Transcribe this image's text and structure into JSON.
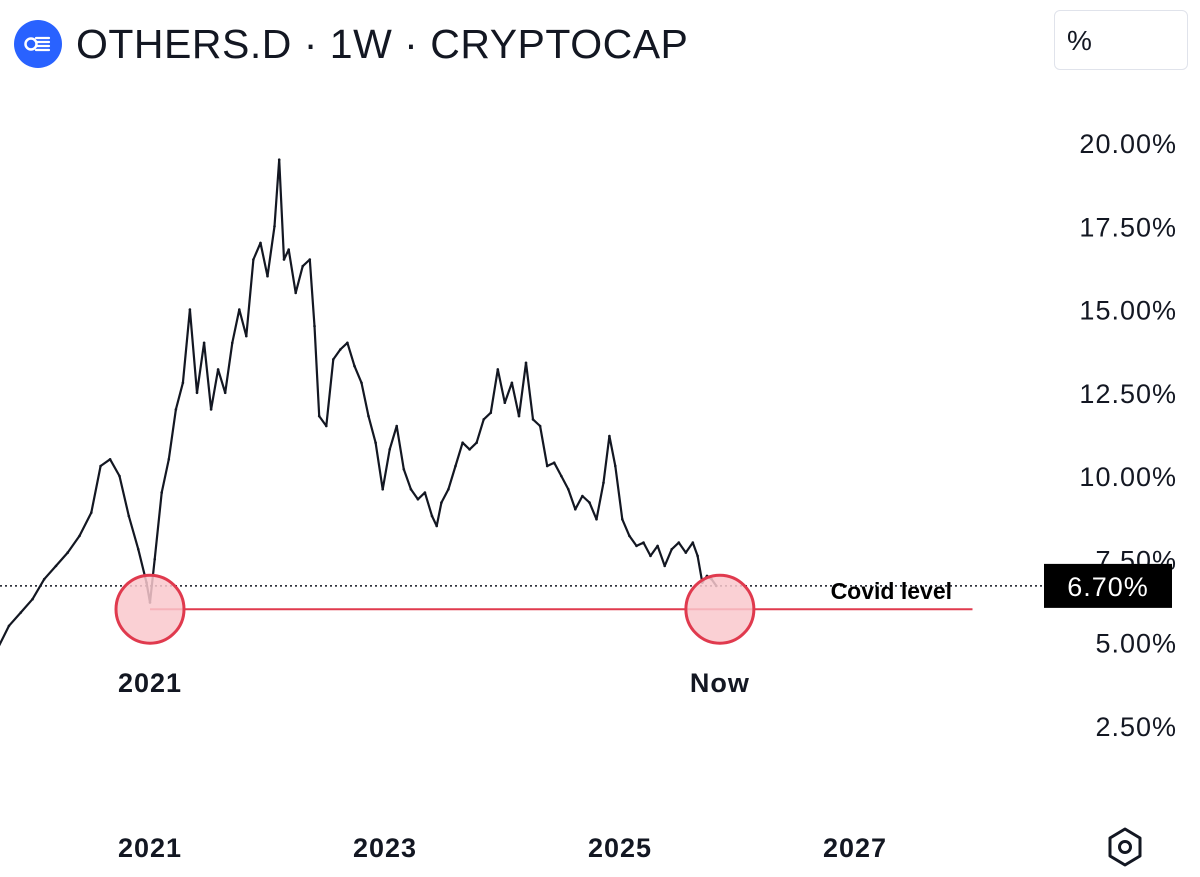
{
  "header": {
    "title": "OTHERS.D · 1W · CRYPTOCAP",
    "logo_icon": "cryptocap-logo-icon"
  },
  "toolbar": {
    "scale_label": "%"
  },
  "settings_icon": "hexagon-settings-icon",
  "chart_data": {
    "type": "line",
    "title": "OTHERS.D · 1W · CRYPTOCAP",
    "xlabel": "",
    "ylabel": "",
    "y_unit": "%",
    "ylim": [
      0,
      22
    ],
    "xlim": [
      2019.7,
      2028.2
    ],
    "y_ticks": [
      {
        "value": 20.0,
        "label": "20.00%"
      },
      {
        "value": 17.5,
        "label": "17.50%"
      },
      {
        "value": 15.0,
        "label": "15.00%"
      },
      {
        "value": 12.5,
        "label": "12.50%"
      },
      {
        "value": 10.0,
        "label": "10.00%"
      },
      {
        "value": 7.5,
        "label": "7.50%"
      },
      {
        "value": 5.0,
        "label": "5.00%"
      },
      {
        "value": 2.5,
        "label": "2.50%"
      }
    ],
    "x_ticks": [
      {
        "value": 2021,
        "label": "2021"
      },
      {
        "value": 2023,
        "label": "2023"
      },
      {
        "value": 2025,
        "label": "2025"
      },
      {
        "value": 2027,
        "label": "2027"
      }
    ],
    "series": [
      {
        "name": "OTHERS.D",
        "points": [
          [
            2019.7,
            4.8
          ],
          [
            2019.8,
            5.5
          ],
          [
            2019.9,
            5.9
          ],
          [
            2020.0,
            6.3
          ],
          [
            2020.1,
            6.9
          ],
          [
            2020.2,
            7.3
          ],
          [
            2020.3,
            7.7
          ],
          [
            2020.4,
            8.2
          ],
          [
            2020.5,
            8.9
          ],
          [
            2020.58,
            10.3
          ],
          [
            2020.66,
            10.5
          ],
          [
            2020.74,
            10.0
          ],
          [
            2020.82,
            8.8
          ],
          [
            2020.9,
            7.8
          ],
          [
            2020.97,
            6.8
          ],
          [
            2021.0,
            6.2
          ],
          [
            2021.04,
            7.5
          ],
          [
            2021.1,
            9.5
          ],
          [
            2021.16,
            10.5
          ],
          [
            2021.22,
            12.0
          ],
          [
            2021.28,
            12.8
          ],
          [
            2021.34,
            15.0
          ],
          [
            2021.4,
            12.5
          ],
          [
            2021.46,
            14.0
          ],
          [
            2021.52,
            12.0
          ],
          [
            2021.58,
            13.2
          ],
          [
            2021.64,
            12.5
          ],
          [
            2021.7,
            14.0
          ],
          [
            2021.76,
            15.0
          ],
          [
            2021.82,
            14.2
          ],
          [
            2021.88,
            16.5
          ],
          [
            2021.94,
            17.0
          ],
          [
            2022.0,
            16.0
          ],
          [
            2022.06,
            17.5
          ],
          [
            2022.1,
            19.5
          ],
          [
            2022.14,
            16.5
          ],
          [
            2022.18,
            16.8
          ],
          [
            2022.24,
            15.5
          ],
          [
            2022.3,
            16.3
          ],
          [
            2022.36,
            16.5
          ],
          [
            2022.4,
            14.5
          ],
          [
            2022.44,
            11.8
          ],
          [
            2022.5,
            11.5
          ],
          [
            2022.56,
            13.5
          ],
          [
            2022.62,
            13.8
          ],
          [
            2022.68,
            14.0
          ],
          [
            2022.74,
            13.3
          ],
          [
            2022.8,
            12.8
          ],
          [
            2022.86,
            11.8
          ],
          [
            2022.92,
            11.0
          ],
          [
            2022.98,
            9.6
          ],
          [
            2023.04,
            10.8
          ],
          [
            2023.1,
            11.5
          ],
          [
            2023.16,
            10.2
          ],
          [
            2023.22,
            9.6
          ],
          [
            2023.28,
            9.3
          ],
          [
            2023.34,
            9.5
          ],
          [
            2023.4,
            8.8
          ],
          [
            2023.44,
            8.5
          ],
          [
            2023.48,
            9.2
          ],
          [
            2023.54,
            9.6
          ],
          [
            2023.6,
            10.3
          ],
          [
            2023.66,
            11.0
          ],
          [
            2023.72,
            10.8
          ],
          [
            2023.78,
            11.0
          ],
          [
            2023.84,
            11.7
          ],
          [
            2023.9,
            11.9
          ],
          [
            2023.96,
            13.2
          ],
          [
            2024.02,
            12.2
          ],
          [
            2024.08,
            12.8
          ],
          [
            2024.14,
            11.8
          ],
          [
            2024.2,
            13.4
          ],
          [
            2024.26,
            11.7
          ],
          [
            2024.32,
            11.5
          ],
          [
            2024.38,
            10.3
          ],
          [
            2024.44,
            10.4
          ],
          [
            2024.5,
            10.0
          ],
          [
            2024.56,
            9.6
          ],
          [
            2024.62,
            9.0
          ],
          [
            2024.68,
            9.4
          ],
          [
            2024.74,
            9.2
          ],
          [
            2024.8,
            8.7
          ],
          [
            2024.86,
            9.8
          ],
          [
            2024.91,
            11.2
          ],
          [
            2024.96,
            10.3
          ],
          [
            2025.02,
            8.7
          ],
          [
            2025.08,
            8.2
          ],
          [
            2025.14,
            7.9
          ],
          [
            2025.2,
            8.0
          ],
          [
            2025.26,
            7.6
          ],
          [
            2025.32,
            7.9
          ],
          [
            2025.38,
            7.3
          ],
          [
            2025.44,
            7.8
          ],
          [
            2025.5,
            8.0
          ],
          [
            2025.56,
            7.7
          ],
          [
            2025.62,
            8.0
          ],
          [
            2025.66,
            7.6
          ],
          [
            2025.7,
            6.8
          ],
          [
            2025.74,
            7.0
          ],
          [
            2025.78,
            6.9
          ],
          [
            2025.82,
            6.7
          ]
        ]
      }
    ],
    "current_value": {
      "value": 6.7,
      "label": "6.70%"
    },
    "annotations": {
      "support_line": {
        "label": "Covid level",
        "y": 6.0,
        "x_start": 2021.0,
        "x_end": 2028.0
      },
      "circles": [
        {
          "label": "2021",
          "x": 2021.0,
          "y": 6.0
        },
        {
          "label": "Now",
          "x": 2025.85,
          "y": 6.0
        }
      ]
    },
    "colors": {
      "price": "#131722",
      "support": "#e03a4e",
      "circle_fill": "#f9c8cd",
      "circle_stroke": "#e03a4e",
      "badge_bg": "#000000",
      "badge_text": "#ffffff",
      "axis_text": "#131722"
    }
  }
}
